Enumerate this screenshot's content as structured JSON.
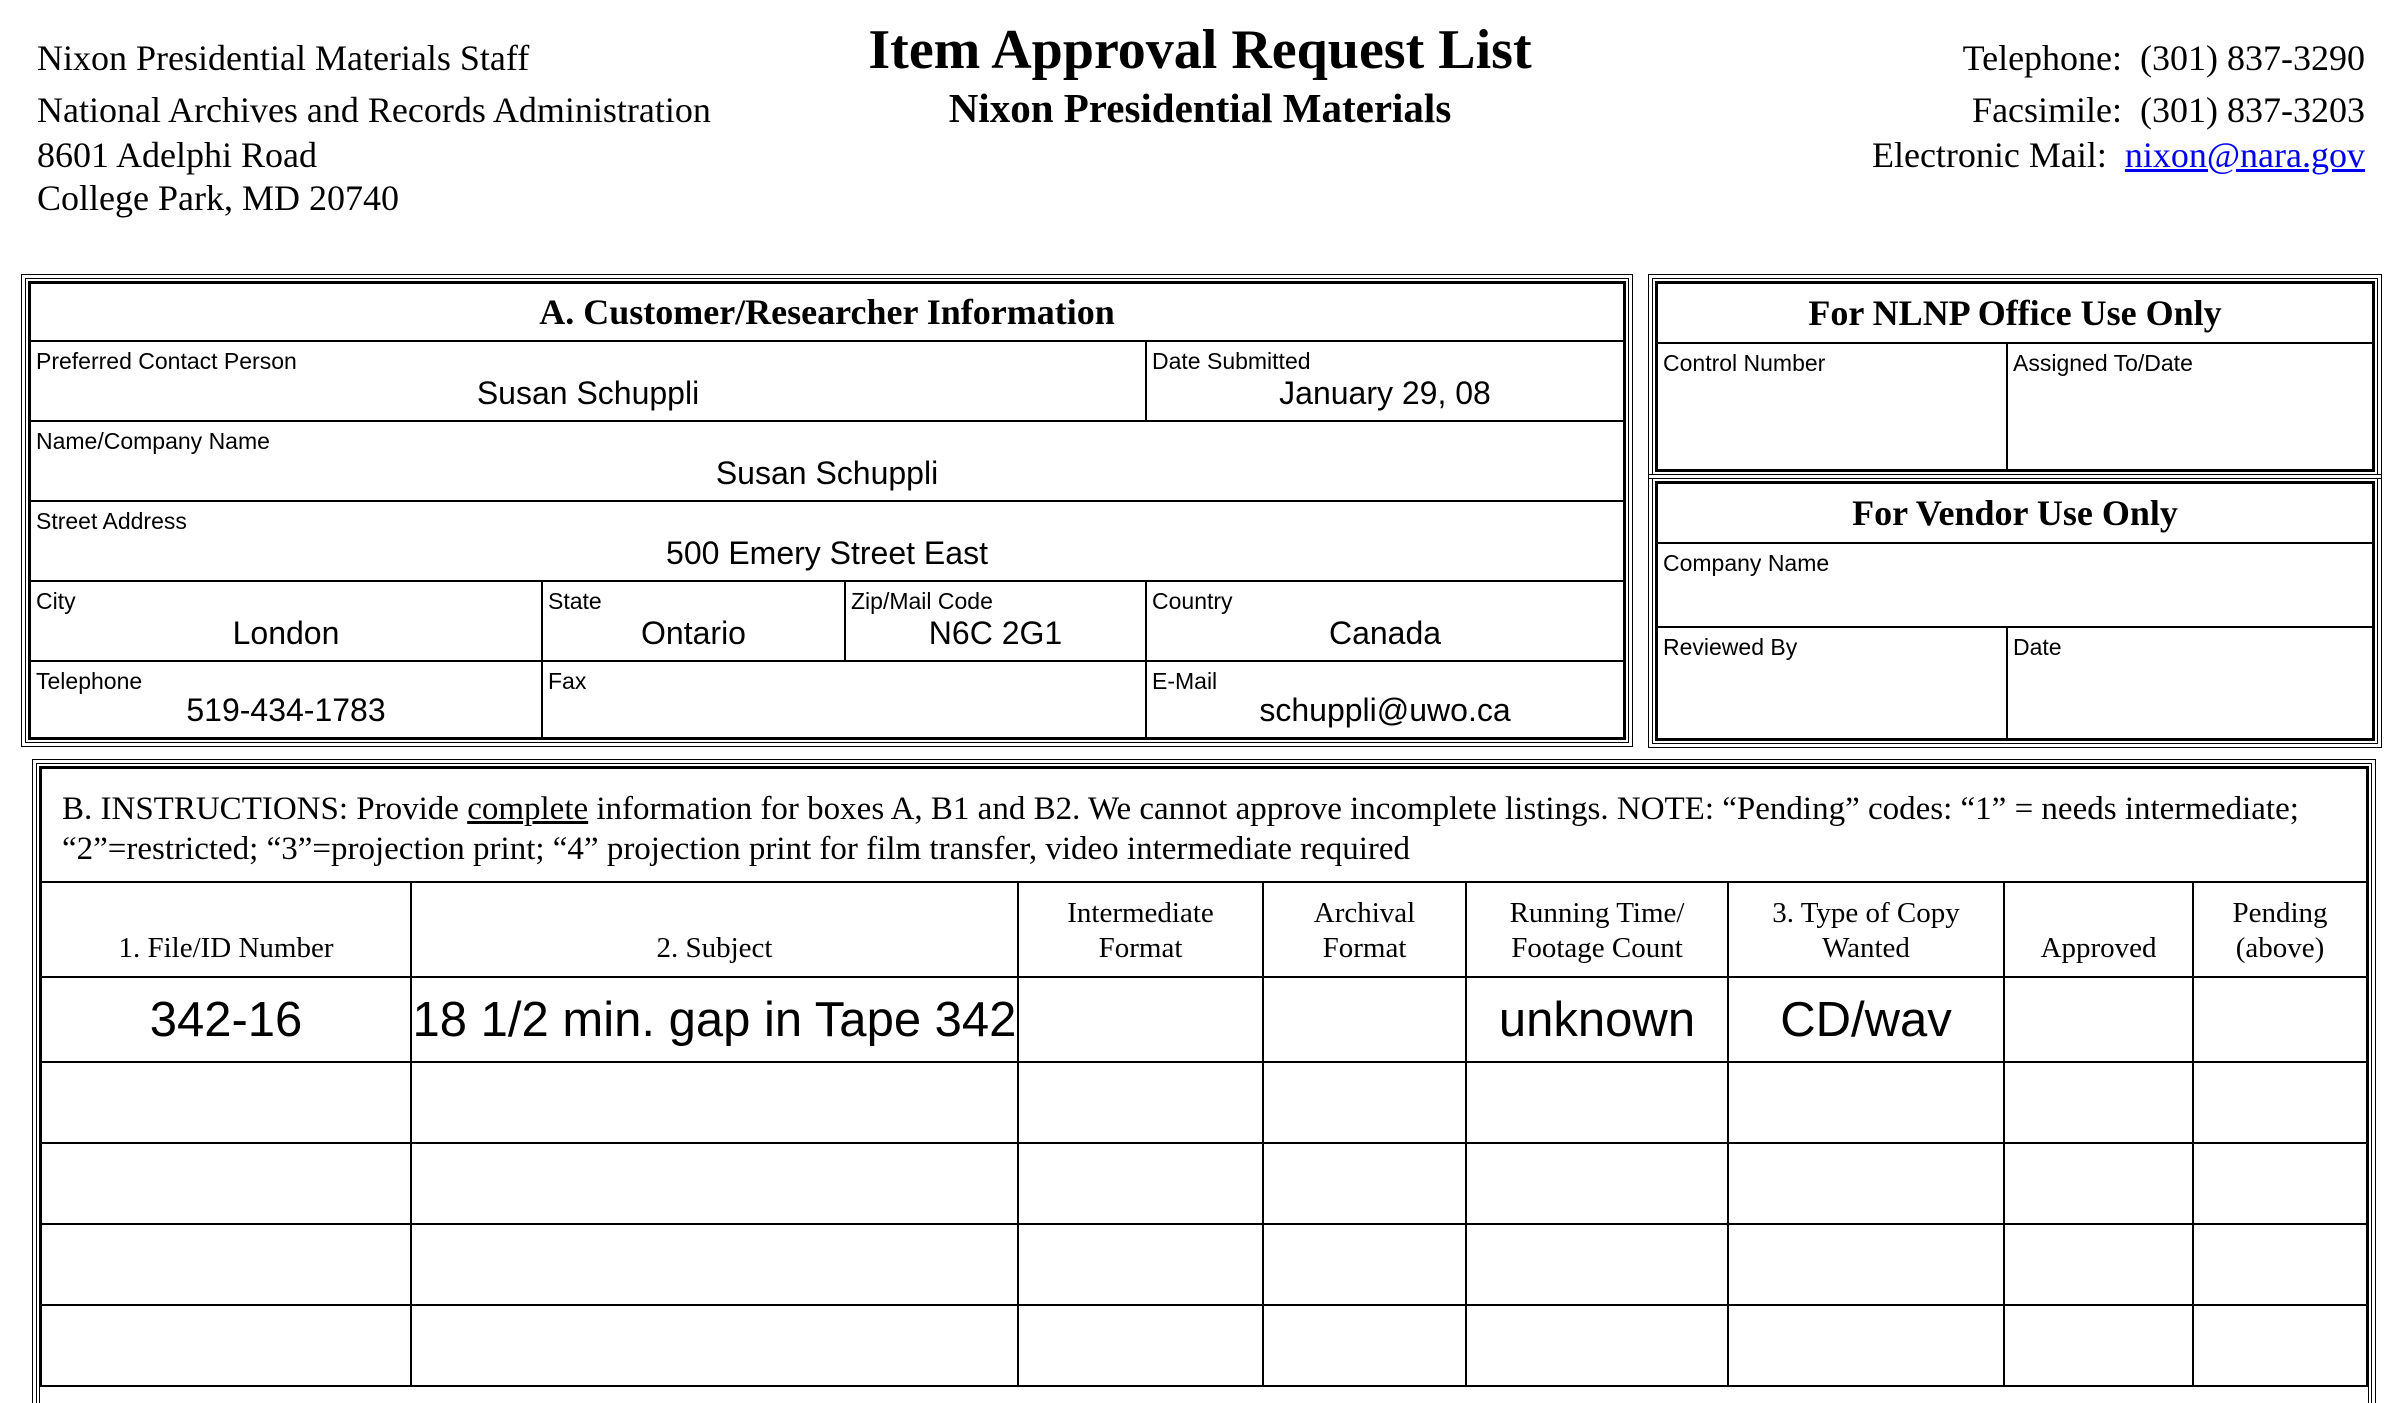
{
  "header": {
    "left_lines": [
      "Nixon Presidential Materials Staff",
      "National Archives and Records Administration",
      "8601 Adelphi Road",
      "College Park, MD  20740"
    ],
    "title": "Item Approval Request List",
    "subtitle": "Nixon Presidential Materials",
    "telephone_label": "Telephone:",
    "telephone": "(301) 837-3290",
    "fax_label": "Facsimile:",
    "fax": "(301) 837-3203",
    "email_label": "Electronic Mail:",
    "email": "nixon@nara.gov",
    "link_color": "#0000ee"
  },
  "section_a": {
    "title": "A.  Customer/Researcher Information",
    "fields": {
      "contact": {
        "label": "Preferred Contact Person",
        "value": "Susan Schuppli"
      },
      "date": {
        "label": "Date Submitted",
        "value": "January 29, 08"
      },
      "name": {
        "label": "Name/Company Name",
        "value": "Susan Schuppli"
      },
      "street": {
        "label": "Street Address",
        "value": "500 Emery Street East"
      },
      "city": {
        "label": "City",
        "value": "London"
      },
      "state": {
        "label": "State",
        "value": "Ontario"
      },
      "zip": {
        "label": "Zip/Mail Code",
        "value": "N6C 2G1"
      },
      "country": {
        "label": "Country",
        "value": "Canada"
      },
      "telephone": {
        "label": "Telephone",
        "value": "519-434-1783"
      },
      "fax": {
        "label": "Fax",
        "value": ""
      },
      "email": {
        "label": "E-Mail",
        "value": "schuppli@uwo.ca"
      }
    }
  },
  "office": {
    "title": "For NLNP Office Use Only",
    "control_label": "Control Number",
    "assigned_label": "Assigned To/Date"
  },
  "vendor": {
    "title": "For Vendor Use Only",
    "company_label": "Company Name",
    "reviewed_label": "Reviewed By",
    "date_label": "Date"
  },
  "section_b": {
    "instr_prefix": "B. INSTRUCTIONS:  Provide ",
    "instr_underlined": "complete",
    "instr_rest": " information for boxes A, B1 and B2.  We cannot approve incomplete listings.  NOTE:  “Pending” codes: “1” = needs intermediate; “2”=restricted; “3”=projection print; “4” projection print for film transfer, video intermediate required",
    "columns": [
      [
        "1. File/ID Number"
      ],
      [
        "2. Subject"
      ],
      [
        "Intermediate",
        "Format"
      ],
      [
        "Archival",
        "Format"
      ],
      [
        "Running Time/",
        "Footage Count"
      ],
      [
        "3. Type of Copy",
        "Wanted"
      ],
      [
        "Approved"
      ],
      [
        "Pending",
        "(above)"
      ]
    ],
    "rows": [
      [
        "342-16",
        "18 1/2 min. gap in Tape 342",
        "",
        "",
        "unknown",
        "CD/wav",
        "",
        ""
      ],
      [
        "",
        "",
        "",
        "",
        "",
        "",
        "",
        ""
      ],
      [
        "",
        "",
        "",
        "",
        "",
        "",
        "",
        ""
      ],
      [
        "",
        "",
        "",
        "",
        "",
        "",
        "",
        ""
      ],
      [
        "",
        "",
        "",
        "",
        "",
        "",
        "",
        ""
      ]
    ]
  }
}
